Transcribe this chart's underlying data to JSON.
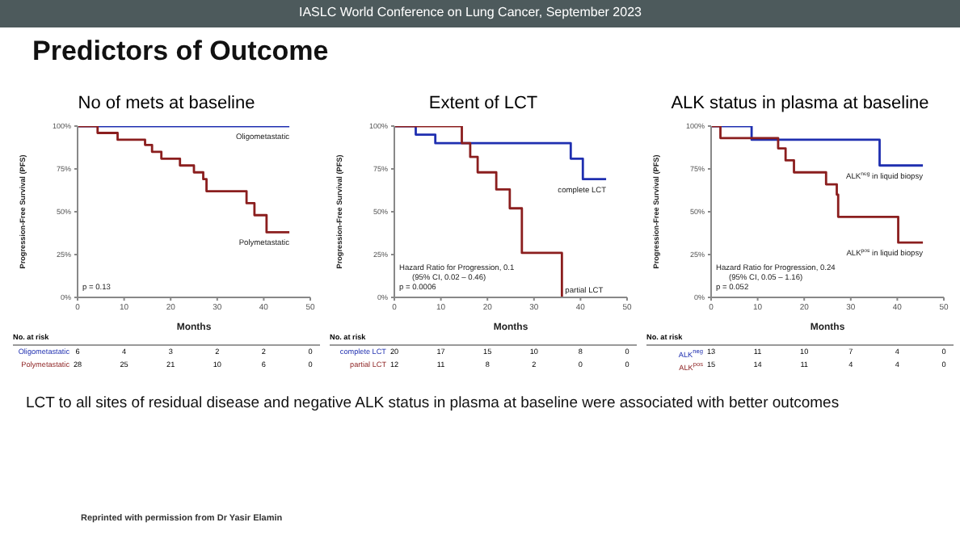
{
  "chart_data": [
    {
      "type": "other",
      "subtitle": "IASLC World Conference on Lung Cancer, September 2023",
      "title": "Predictors of Outcome",
      "annotations": [
        "LCT to all sites of residual disease and negative ALK status in plasma at baseline were associated with better outcomes",
        "Reprinted with permission from Dr Yasir Elamin"
      ]
    },
    {
      "type": "step",
      "title": "No of mets at baseline",
      "xlabel": "Months",
      "ylabel": "Progression-Free Survival (PFS)",
      "xlim": [
        0,
        50
      ],
      "xticks": [
        0,
        10,
        20,
        30,
        40,
        50
      ],
      "ylim": [
        0,
        100
      ],
      "yticks": [
        {
          "value": 0,
          "label": "0%"
        },
        {
          "value": 25,
          "label": "25%"
        },
        {
          "value": 50,
          "label": "50%"
        },
        {
          "value": 75,
          "label": "75%"
        },
        {
          "value": 100,
          "label": "100%"
        }
      ],
      "series": [
        {
          "name": "Oligometastatic",
          "color": "#1f2fb0",
          "x": [
            0,
            45.5
          ],
          "values": [
            100,
            100
          ]
        },
        {
          "name": "Polymetastatic",
          "color": "#8b1e1e",
          "x": [
            0,
            4.3,
            8.6,
            14.5,
            16,
            18,
            22,
            25,
            27,
            27.7,
            36.3,
            38,
            40.6,
            45.5
          ],
          "values": [
            100,
            96,
            92,
            89,
            85,
            81,
            77,
            73,
            69,
            62,
            55,
            48,
            38,
            38
          ]
        }
      ],
      "annotations": [
        "p = 0.13",
        "No. at risk",
        "Oligometastatic 6 4 3 2 2 0",
        "Polymetastatic 28 25 21 10 6 0"
      ]
    },
    {
      "type": "step",
      "title": "Extent of LCT",
      "xlabel": "Months",
      "ylabel": "Progression-Free Survival (PFS)",
      "xlim": [
        0,
        50
      ],
      "xticks": [
        0,
        10,
        20,
        30,
        40,
        50
      ],
      "ylim": [
        0,
        100
      ],
      "yticks": [
        {
          "value": 0,
          "label": "0%"
        },
        {
          "value": 25,
          "label": "25%"
        },
        {
          "value": 50,
          "label": "50%"
        },
        {
          "value": 75,
          "label": "75%"
        },
        {
          "value": 100,
          "label": "100%"
        }
      ],
      "series": [
        {
          "name": "complete LCT",
          "color": "#1f2fb0",
          "x": [
            0,
            4.6,
            8.8,
            37.9,
            40.5,
            45.5
          ],
          "values": [
            100,
            95,
            90,
            81,
            69,
            69
          ]
        },
        {
          "name": "partial LCT",
          "color": "#8b1e1e",
          "x": [
            0,
            14.5,
            16.3,
            17.9,
            21.9,
            24.8,
            27.4,
            36
          ],
          "values": [
            100,
            90,
            82,
            73,
            63,
            52,
            26,
            0
          ]
        }
      ],
      "annotations": [
        "Hazard Ratio for Progression, 0.1",
        "(95% CI, 0.02 – 0.46)",
        "p = 0.0006",
        "No. at risk",
        "complete LCT 20 17 15 10 8 0",
        "partial LCT 12 11 8 2 0 0"
      ]
    },
    {
      "type": "step",
      "title": "ALK status in plasma at baseline",
      "xlabel": "Months",
      "ylabel": "Progression-Free Survival (PFS)",
      "xlim": [
        0,
        50
      ],
      "xticks": [
        0,
        10,
        20,
        30,
        40,
        50
      ],
      "ylim": [
        0,
        100
      ],
      "yticks": [
        {
          "value": 0,
          "label": "0%"
        },
        {
          "value": 25,
          "label": "25%"
        },
        {
          "value": 50,
          "label": "50%"
        },
        {
          "value": 75,
          "label": "75%"
        },
        {
          "value": 100,
          "label": "100%"
        }
      ],
      "series": [
        {
          "name": "ALK$^{neg}$ in liquid biopsy",
          "color": "#1f2fb0",
          "x": [
            0,
            8.7,
            36.2,
            45.5
          ],
          "values": [
            100,
            92,
            77,
            77
          ]
        },
        {
          "name": "ALK$^{pos}$ in liquid biopsy",
          "color": "#8b1e1e",
          "x": [
            0,
            2,
            14.4,
            16,
            17.8,
            24.7,
            27,
            27.3,
            40.2,
            45.5
          ],
          "values": [
            100,
            93,
            87,
            80,
            73,
            66,
            60,
            47,
            32,
            32
          ]
        }
      ],
      "annotations": [
        "Hazard Ratio for Progression, 0.24",
        "(95% CI, 0.05 – 1.16)",
        "p = 0.052",
        "No. at risk",
        "ALK$^{neg}$ 13 11 10 7 4 0",
        "ALK$^{pos}$ 15 14 11 4 4 0"
      ]
    }
  ]
}
